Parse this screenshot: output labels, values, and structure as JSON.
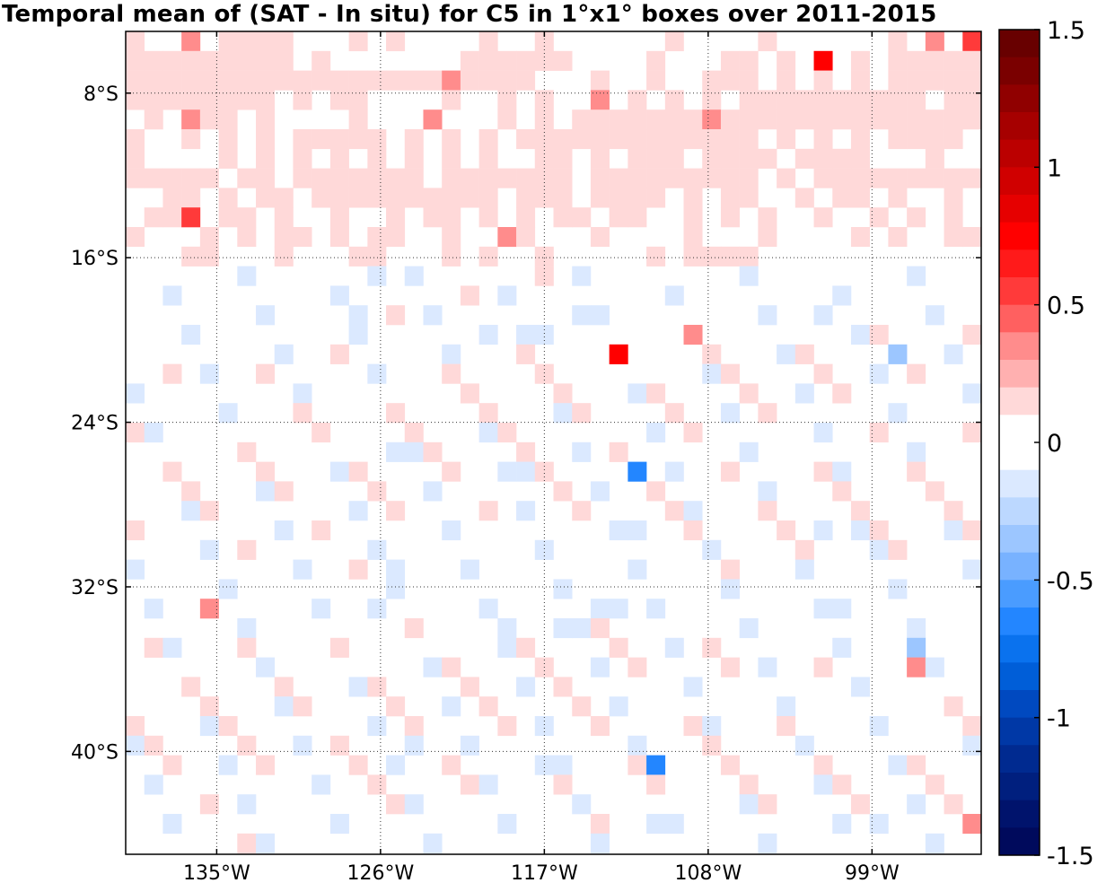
{
  "chart_data": {
    "type": "heatmap",
    "title": "Temporal mean of (SAT - In situ) for C5 in 1°x1° boxes over 2011-2015",
    "x_ticks": [
      {
        "lon": -135,
        "label": "135°W"
      },
      {
        "lon": -126,
        "label": "126°W"
      },
      {
        "lon": -117,
        "label": "117°W"
      },
      {
        "lon": -108,
        "label": "108°W"
      },
      {
        "lon": -99,
        "label": "99°W"
      }
    ],
    "y_ticks": [
      {
        "lat": -8,
        "label": "8°S"
      },
      {
        "lat": -16,
        "label": "16°S"
      },
      {
        "lat": -24,
        "label": "24°S"
      },
      {
        "lat": -32,
        "label": "32°S"
      },
      {
        "lat": -40,
        "label": "40°S"
      }
    ],
    "xlim": [
      -140,
      -93
    ],
    "ylim": [
      -45,
      -5
    ],
    "grid": true,
    "colorbar": {
      "vmin": -1.5,
      "vmax": 1.5,
      "levels": 30,
      "ticks": [
        {
          "value": 1.5,
          "label": "1.5"
        },
        {
          "value": 1,
          "label": "1"
        },
        {
          "value": 0.5,
          "label": "0.5"
        },
        {
          "value": 0,
          "label": "0"
        },
        {
          "value": -0.5,
          "label": "-0.5"
        },
        {
          "value": -1,
          "label": "-1"
        },
        {
          "value": -1.5,
          "label": "-1.5"
        }
      ]
    },
    "grid_rows": [
      "1..2.1111...1.1....1..1......1....1......1.2.3",
      ".111111111111111.1.......111111....1...11.1.4.1",
      "1.1.1.1.1111111111111111111111121111...1..1..11",
      "2.1.1.1.1111111111.1111111111.1.11....1..1.1..",
      "..1.1.1111111211111111111111.1.211.1....1...2.",
      "111.1.1.1.1111111111111.1.1.1.1111.1..1.1.1.11",
      ".1.1.1.1.1.1.1.1..11.1.111.1111.1111...1..1...",
      "11111111.11.1111111.1111111.111111111.1.111111",
      "1.11.1..1...11.1.11.1111111111.111.1111.1.11..",
      ".1.1.1..1..1.1.1..113.11.1..1..1.11.1.1.11.11.",
      ".1....1...1....1.1..1111...1.1.11.1.11..1..21..",
      "..1.1..1.....1.1111...............11...1...11.",
      "..............11.1.....1.............1.....1..",
      ".............1.1.......................1.......",
      "...........1....1.12...............1..........."
    ],
    "neg_rows": [
      "..................1..1........................",
      "...........................................2..",
      "..............................................",
      "..............................................",
      "..............................................",
      "..............................................",
      "...............................1..............",
      ".3.......................................1....",
      "..............................................",
      "..............................................",
      "..........1.........1.1.......................",
      ".............................................",
      "...1..........................................",
      "..............................................",
      "........1...........11...........1............"
    ]
  }
}
